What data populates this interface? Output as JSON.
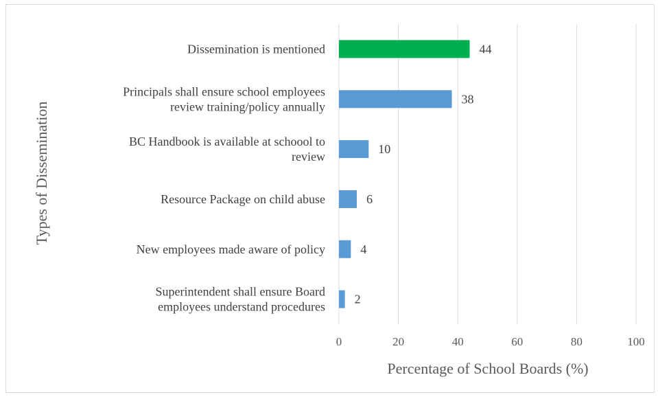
{
  "chart_data": {
    "type": "bar",
    "orientation": "horizontal",
    "categories": [
      [
        "Dissemination is mentioned"
      ],
      [
        "Principals shall ensure school employees",
        "review training/policy annually"
      ],
      [
        "BC Handbook is available at schoool to",
        "review"
      ],
      [
        "Resource Package on child abuse"
      ],
      [
        "New employees made aware of policy"
      ],
      [
        "Superintendent shall ensure Board",
        "employees understand procedures"
      ]
    ],
    "values": [
      44,
      38,
      10,
      6,
      4,
      2
    ],
    "data_labels": [
      "44",
      "38",
      "10",
      "6",
      "4",
      "2"
    ],
    "bar_colors": [
      "#00b050",
      "#5b9bd5",
      "#5b9bd5",
      "#5b9bd5",
      "#5b9bd5",
      "#5b9bd5"
    ],
    "xlabel": "Percentage of School Boards (%)",
    "ylabel": "Types of Dissemination",
    "xlim": [
      0,
      100
    ],
    "xticks": [
      0,
      20,
      40,
      60,
      80,
      100
    ],
    "xtick_labels": [
      "0",
      "20",
      "40",
      "60",
      "80",
      "100"
    ],
    "grid": "vertical",
    "legend": "none"
  }
}
